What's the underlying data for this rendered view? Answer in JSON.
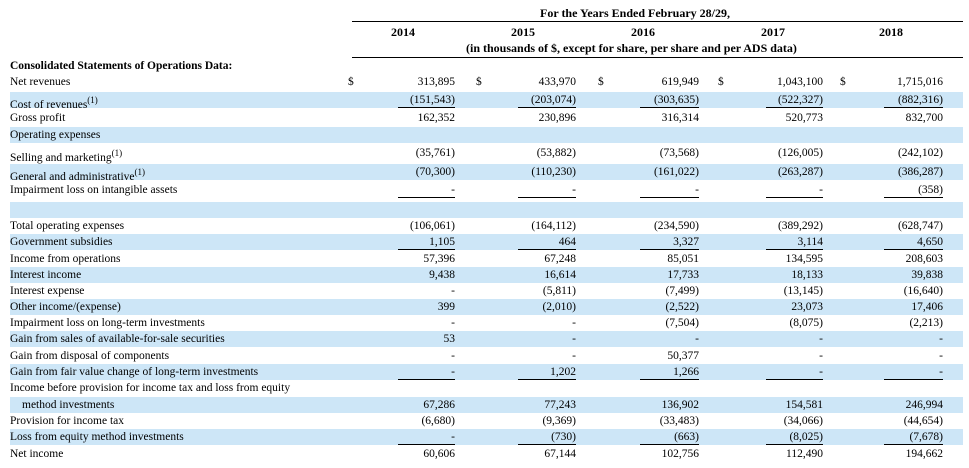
{
  "header": {
    "line1": "For the Years Ended February 28/29,",
    "line2": "(in thousands of $, except for share, per share and per ADS data)"
  },
  "years": [
    "2014",
    "2015",
    "2016",
    "2017",
    "2018"
  ],
  "section_title": "Consolidated Statements of Operations Data:",
  "rows": [
    {
      "label": "Net revenues",
      "values": [
        "313,895",
        "433,970",
        "619,949",
        "1,043,100",
        "1,715,016"
      ],
      "dollar": true
    },
    {
      "label": "Cost of revenues",
      "note": "(1)",
      "values": [
        "(151,543)",
        "(203,074)",
        "(303,635)",
        "(522,327)",
        "(882,316)"
      ],
      "underline": true
    },
    {
      "label": "Gross profit",
      "values": [
        "162,352",
        "230,896",
        "316,314",
        "520,773",
        "832,700"
      ]
    },
    {
      "label": "Operating expenses",
      "values": [
        "",
        "",
        "",
        "",
        ""
      ]
    },
    {
      "label": "Selling and marketing",
      "note": "(1)",
      "values": [
        "(35,761)",
        "(53,882)",
        "(73,568)",
        "(126,005)",
        "(242,102)"
      ]
    },
    {
      "label": "General and administrative",
      "note": "(1)",
      "values": [
        "(70,300)",
        "(110,230)",
        "(161,022)",
        "(263,287)",
        "(386,287)"
      ]
    },
    {
      "label": "Impairment loss on intangible assets",
      "values": [
        "-",
        "-",
        "-",
        "-",
        "(358)"
      ],
      "underline": true
    },
    {
      "label": "",
      "values": [
        "",
        "",
        "",
        "",
        ""
      ]
    },
    {
      "label": "Total operating expenses",
      "values": [
        "(106,061)",
        "(164,112)",
        "(234,590)",
        "(389,292)",
        "(628,747)"
      ]
    },
    {
      "label": "Government subsidies",
      "values": [
        "1,105",
        "464",
        "3,327",
        "3,114",
        "4,650"
      ],
      "underline": true
    },
    {
      "label": "Income from operations",
      "values": [
        "57,396",
        "67,248",
        "85,051",
        "134,595",
        "208,603"
      ]
    },
    {
      "label": "Interest income",
      "values": [
        "9,438",
        "16,614",
        "17,733",
        "18,133",
        "39,838"
      ]
    },
    {
      "label": "Interest expense",
      "values": [
        "-",
        "(5,811)",
        "(7,499)",
        "(13,145)",
        "(16,640)"
      ]
    },
    {
      "label": "Other income/(expense)",
      "values": [
        "399",
        "(2,010)",
        "(2,522)",
        "23,073",
        "17,406"
      ]
    },
    {
      "label": "Impairment loss on long-term investments",
      "values": [
        "-",
        "-",
        "(7,504)",
        "(8,075)",
        "(2,213)"
      ]
    },
    {
      "label": "Gain from sales of available-for-sale securities",
      "values": [
        "53",
        "-",
        "-",
        "-",
        "-"
      ]
    },
    {
      "label": "Gain from disposal of components",
      "values": [
        "-",
        "-",
        "50,377",
        "-",
        "-"
      ]
    },
    {
      "label": "Gain from fair value change of long-term investments",
      "values": [
        "-",
        "1,202",
        "1,266",
        "-",
        "-"
      ],
      "underline": true
    },
    {
      "label": "Income before provision for income tax and loss from equity",
      "values": [
        "",
        "",
        "",
        "",
        ""
      ]
    },
    {
      "label": "method investments",
      "indent": true,
      "values": [
        "67,286",
        "77,243",
        "136,902",
        "154,581",
        "246,994"
      ]
    },
    {
      "label": "Provision for income tax",
      "values": [
        "(6,680)",
        "(9,369)",
        "(33,483)",
        "(34,066)",
        "(44,654)"
      ]
    },
    {
      "label": "Loss from equity method investments",
      "values": [
        "-",
        "(730)",
        "(663)",
        "(8,025)",
        "(7,678)"
      ],
      "underline": true
    },
    {
      "label": "Net income",
      "values": [
        "60,606",
        "67,144",
        "102,756",
        "112,490",
        "194,662"
      ]
    }
  ],
  "currency_symbol": "$"
}
